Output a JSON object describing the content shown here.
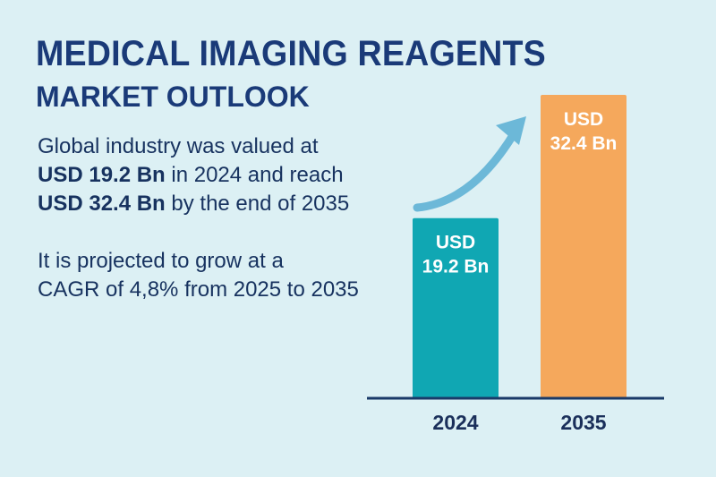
{
  "heading": {
    "line1": "MEDICAL IMAGING REAGENTS",
    "line2": "MARKET OUTLOOK"
  },
  "summary": {
    "p1_line1": "Global industry was valued at",
    "p1_line2_bold": "USD 19.2 Bn",
    "p1_line2_rest": " in 2024 and reach",
    "p1_line3_bold": "USD 32.4 Bn",
    "p1_line3_rest": " by the end of 2035",
    "p2_line1": "It is projected to grow at a",
    "p2_line2": "CAGR of 4,8% from 2025 to 2035"
  },
  "chart_data": {
    "type": "bar",
    "categories": [
      "2024",
      "2035"
    ],
    "values": [
      19.2,
      32.4
    ],
    "bar_labels": [
      [
        "USD",
        "19.2 Bn"
      ],
      [
        "USD",
        "32.4 Bn"
      ]
    ],
    "title": "",
    "xlabel": "",
    "ylabel": "",
    "ylim": [
      0,
      32.4
    ],
    "grid": false,
    "legend": "none",
    "colors": [
      "#10a7b3",
      "#f5a85c"
    ],
    "axis_color": "#1a3a68",
    "arrow_color": "#6cb8d8",
    "label_color": "#ffffff",
    "tick_label_color": "#1a2f5a"
  }
}
